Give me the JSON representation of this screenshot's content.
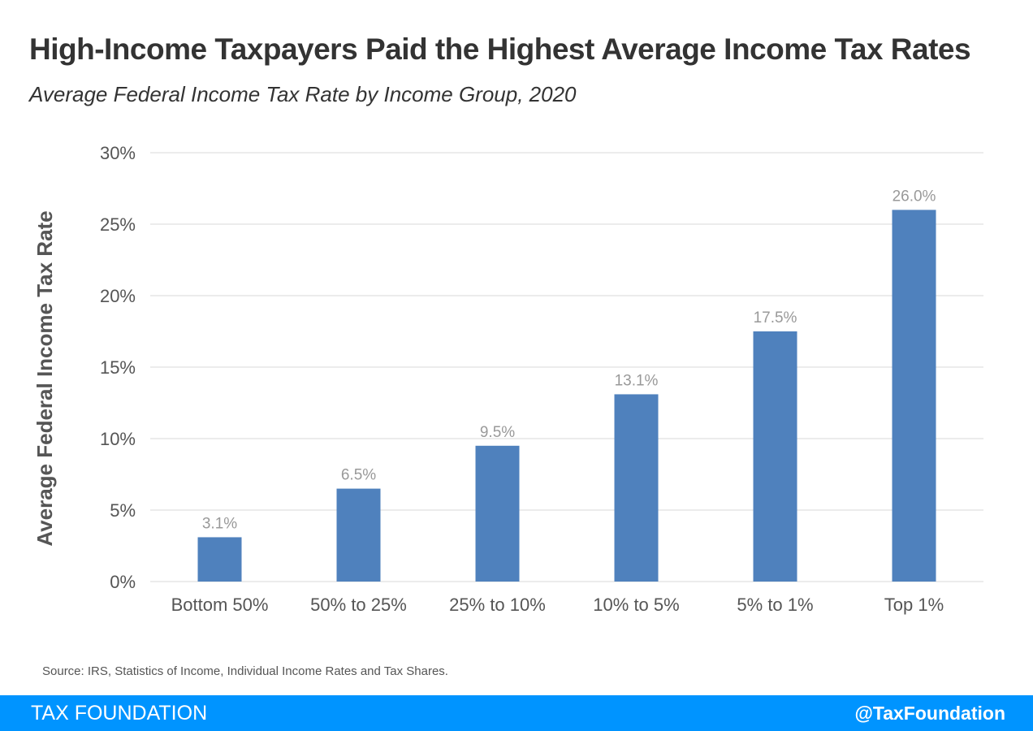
{
  "chart_data": {
    "type": "bar",
    "title": "High-Income Taxpayers Paid the Highest Average Income Tax Rates",
    "subtitle": "Average Federal Income Tax Rate by Income Group, 2020",
    "xlabel": "",
    "ylabel": "Average Federal Income Tax Rate",
    "categories": [
      "Bottom 50%",
      "50% to 25%",
      "25% to 10%",
      "10% to 5%",
      "5% to 1%",
      "Top 1%"
    ],
    "values": [
      3.1,
      6.5,
      9.5,
      13.1,
      17.5,
      26.0
    ],
    "data_labels": [
      "3.1%",
      "6.5%",
      "9.5%",
      "13.1%",
      "17.5%",
      "26.0%"
    ],
    "ylim": [
      0,
      30
    ],
    "yticks": [
      0,
      5,
      10,
      15,
      20,
      25,
      30
    ],
    "ytick_labels": [
      "0%",
      "5%",
      "10%",
      "15%",
      "20%",
      "25%",
      "30%"
    ],
    "grid": true,
    "colors": {
      "bar": "#4f81bd",
      "grid": "#d9d9d9",
      "label": "#999999"
    }
  },
  "source": "Source: IRS, Statistics of Income, Individual Income Rates and Tax Shares.",
  "footer": {
    "brand": "TAX FOUNDATION",
    "handle": "@TaxFoundation",
    "color": "#0094ff"
  }
}
